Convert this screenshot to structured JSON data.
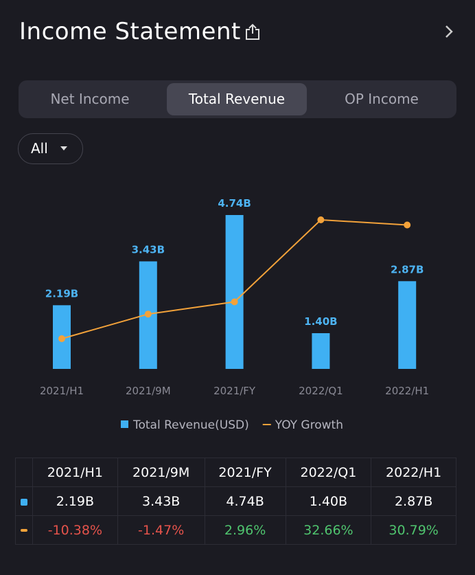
{
  "header": {
    "title": "Income Statement"
  },
  "tabs": [
    "Net Income",
    "Total Revenue",
    "OP Income"
  ],
  "active_tab": 1,
  "filter": "All",
  "chart_data": {
    "type": "bar",
    "categories": [
      "2021/H1",
      "2021/9M",
      "2021/FY",
      "2022/Q1",
      "2022/H1"
    ],
    "ylim": [
      0.39,
      4.74
    ],
    "y2lim": [
      -21.32,
      34.4
    ],
    "series": [
      {
        "name": "Total Revenue(USD)",
        "type": "bar",
        "color": "#3fb0f3",
        "values": [
          2.19,
          3.43,
          4.74,
          1.4,
          2.87
        ],
        "value_labels": [
          "2.19B",
          "3.43B",
          "4.74B",
          "1.40B",
          "2.87B"
        ]
      },
      {
        "name": "YOY Growth",
        "type": "line",
        "axis": "y2",
        "color": "#f3a23a",
        "values": [
          -10.38,
          -1.47,
          2.96,
          32.66,
          30.79
        ]
      }
    ]
  },
  "table": {
    "rows": [
      [
        "2.19B",
        "3.43B",
        "4.74B",
        "1.40B",
        "2.87B"
      ],
      [
        "-10.38%",
        "-1.47%",
        "2.96%",
        "32.66%",
        "30.79%"
      ]
    ]
  }
}
